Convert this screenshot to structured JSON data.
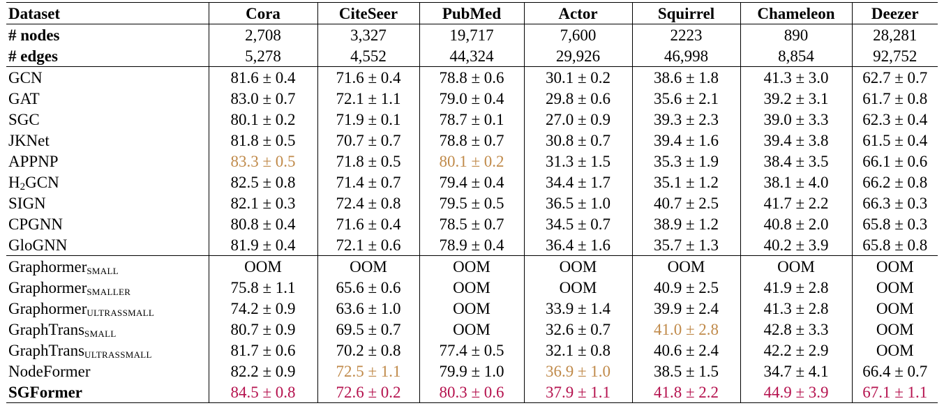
{
  "columns": [
    "Dataset",
    "Cora",
    "CiteSeer",
    "PubMed",
    "Actor",
    "Squirrel",
    "Chameleon",
    "Deezer"
  ],
  "stats": [
    {
      "label": "# nodes",
      "values": [
        "2,708",
        "3,327",
        "19,717",
        "7,600",
        "2223",
        "890",
        "28,281"
      ]
    },
    {
      "label": "# edges",
      "values": [
        "5,278",
        "4,552",
        "44,324",
        "29,926",
        "46,998",
        "8,854",
        "92,752"
      ]
    }
  ],
  "gnn_rows": [
    {
      "name": "GCN",
      "sub": "",
      "values": [
        "81.6 ± 0.4",
        "71.6 ± 0.4",
        "78.8 ± 0.6",
        "30.1 ± 0.2",
        "38.6 ± 1.8",
        "41.3 ± 3.0",
        "62.7 ± 0.7"
      ],
      "styles": [
        "",
        "",
        "",
        "",
        "",
        "",
        ""
      ]
    },
    {
      "name": "GAT",
      "sub": "",
      "values": [
        "83.0 ± 0.7",
        "72.1 ± 1.1",
        "79.0 ± 0.4",
        "29.8 ± 0.6",
        "35.6 ± 2.1",
        "39.2 ± 3.1",
        "61.7 ± 0.8"
      ],
      "styles": [
        "",
        "",
        "",
        "",
        "",
        "",
        ""
      ]
    },
    {
      "name": "SGC",
      "sub": "",
      "values": [
        "80.1 ± 0.2",
        "71.9 ± 0.1",
        "78.7 ± 0.1",
        "27.0 ± 0.9",
        "39.3 ± 2.3",
        "39.0 ± 3.3",
        "62.3 ± 0.4"
      ],
      "styles": [
        "",
        "",
        "",
        "",
        "",
        "",
        ""
      ]
    },
    {
      "name": "JKNet",
      "sub": "",
      "values": [
        "81.8 ± 0.5",
        "70.7 ± 0.7",
        "78.8 ± 0.7",
        "30.8 ± 0.7",
        "39.4 ± 1.6",
        "39.4 ± 3.8",
        "61.5 ± 0.4"
      ],
      "styles": [
        "",
        "",
        "",
        "",
        "",
        "",
        ""
      ]
    },
    {
      "name": "APPNP",
      "sub": "",
      "values": [
        "83.3 ± 0.5",
        "71.8 ± 0.5",
        "80.1 ± 0.2",
        "31.3 ± 1.5",
        "35.3 ± 1.9",
        "38.4 ± 3.5",
        "66.1 ± 0.6"
      ],
      "styles": [
        "second",
        "",
        "second",
        "",
        "",
        "",
        ""
      ]
    },
    {
      "name": "H",
      "sub": "2",
      "suffix": "GCN",
      "values": [
        "82.5 ± 0.8",
        "71.4 ± 0.7",
        "79.4 ± 0.4",
        "34.4 ± 1.7",
        "35.1 ± 1.2",
        "38.1 ± 4.0",
        "66.2 ± 0.8"
      ],
      "styles": [
        "",
        "",
        "",
        "",
        "",
        "",
        ""
      ]
    },
    {
      "name": "SIGN",
      "sub": "",
      "values": [
        "82.1 ± 0.3",
        "72.4 ± 0.8",
        "79.5 ± 0.5",
        "36.5 ± 1.0",
        "40.7 ± 2.5",
        "41.7 ± 2.2",
        "66.3 ± 0.3"
      ],
      "styles": [
        "",
        "",
        "",
        "",
        "",
        "",
        ""
      ]
    },
    {
      "name": "CPGNN",
      "sub": "",
      "values": [
        "80.8 ± 0.4",
        "71.6 ± 0.4",
        "78.5 ± 0.7",
        "34.5 ± 0.7",
        "38.9 ± 1.2",
        "40.8 ± 2.0",
        "65.8 ± 0.3"
      ],
      "styles": [
        "",
        "",
        "",
        "",
        "",
        "",
        ""
      ]
    },
    {
      "name": "GloGNN",
      "sub": "",
      "values": [
        "81.9 ± 0.4",
        "72.1 ± 0.6",
        "78.9 ± 0.4",
        "36.4 ± 1.6",
        "35.7 ± 1.3",
        "40.2 ± 3.9",
        "65.8 ± 0.8"
      ],
      "styles": [
        "",
        "",
        "",
        "",
        "",
        "",
        ""
      ]
    }
  ],
  "transformer_rows": [
    {
      "name": "Graphormer",
      "sub": "SMALL",
      "values": [
        "OOM",
        "OOM",
        "OOM",
        "OOM",
        "OOM",
        "OOM",
        "OOM"
      ],
      "styles": [
        "",
        "",
        "",
        "",
        "",
        "",
        ""
      ]
    },
    {
      "name": "Graphormer",
      "sub": "SMALLER",
      "values": [
        "75.8 ± 1.1",
        "65.6 ± 0.6",
        "OOM",
        "OOM",
        "40.9 ± 2.5",
        "41.9 ± 2.8",
        "OOM"
      ],
      "styles": [
        "",
        "",
        "",
        "",
        "",
        "",
        ""
      ]
    },
    {
      "name": "Graphormer",
      "sub": "ULTRASSMALL",
      "values": [
        "74.2 ± 0.9",
        "63.6 ± 1.0",
        "OOM",
        "33.9 ± 1.4",
        "39.9 ± 2.4",
        "41.3 ± 2.8",
        "OOM"
      ],
      "styles": [
        "",
        "",
        "",
        "",
        "",
        "",
        ""
      ]
    },
    {
      "name": "GraphTrans",
      "sub": "SMALL",
      "values": [
        "80.7 ± 0.9",
        "69.5 ± 0.7",
        "OOM",
        "32.6 ± 0.7",
        "41.0 ± 2.8",
        "42.8 ± 3.3",
        "OOM"
      ],
      "styles": [
        "",
        "",
        "",
        "",
        "second",
        "",
        ""
      ]
    },
    {
      "name": "GraphTrans",
      "sub": "ULTRASSMALL",
      "values": [
        "81.7 ± 0.6",
        "70.2 ± 0.8",
        "77.4 ± 0.5",
        "32.1 ± 0.8",
        "40.6 ± 2.4",
        "42.2 ± 2.9",
        "OOM"
      ],
      "styles": [
        "",
        "",
        "",
        "",
        "",
        "",
        ""
      ]
    },
    {
      "name": "NodeFormer",
      "sub": "",
      "values": [
        "82.2 ± 0.9",
        "72.5 ± 1.1",
        "79.9 ± 1.0",
        "36.9 ± 1.0",
        "38.5 ± 1.5",
        "34.7 ± 4.1",
        "66.4 ± 0.7"
      ],
      "styles": [
        "",
        "second",
        "",
        "second",
        "",
        "",
        ""
      ]
    },
    {
      "name": "SGFormer",
      "sub": "",
      "bold_name": true,
      "values": [
        "84.5 ± 0.8",
        "72.6 ± 0.2",
        "80.3 ± 0.6",
        "37.9 ± 1.1",
        "41.8 ± 2.2",
        "44.9 ± 3.9",
        "67.1 ± 1.1"
      ],
      "styles": [
        "first",
        "first",
        "first",
        "first",
        "first",
        "first",
        "first"
      ]
    }
  ],
  "colors": {
    "first": "#b5124e",
    "second": "#c08a4a"
  }
}
